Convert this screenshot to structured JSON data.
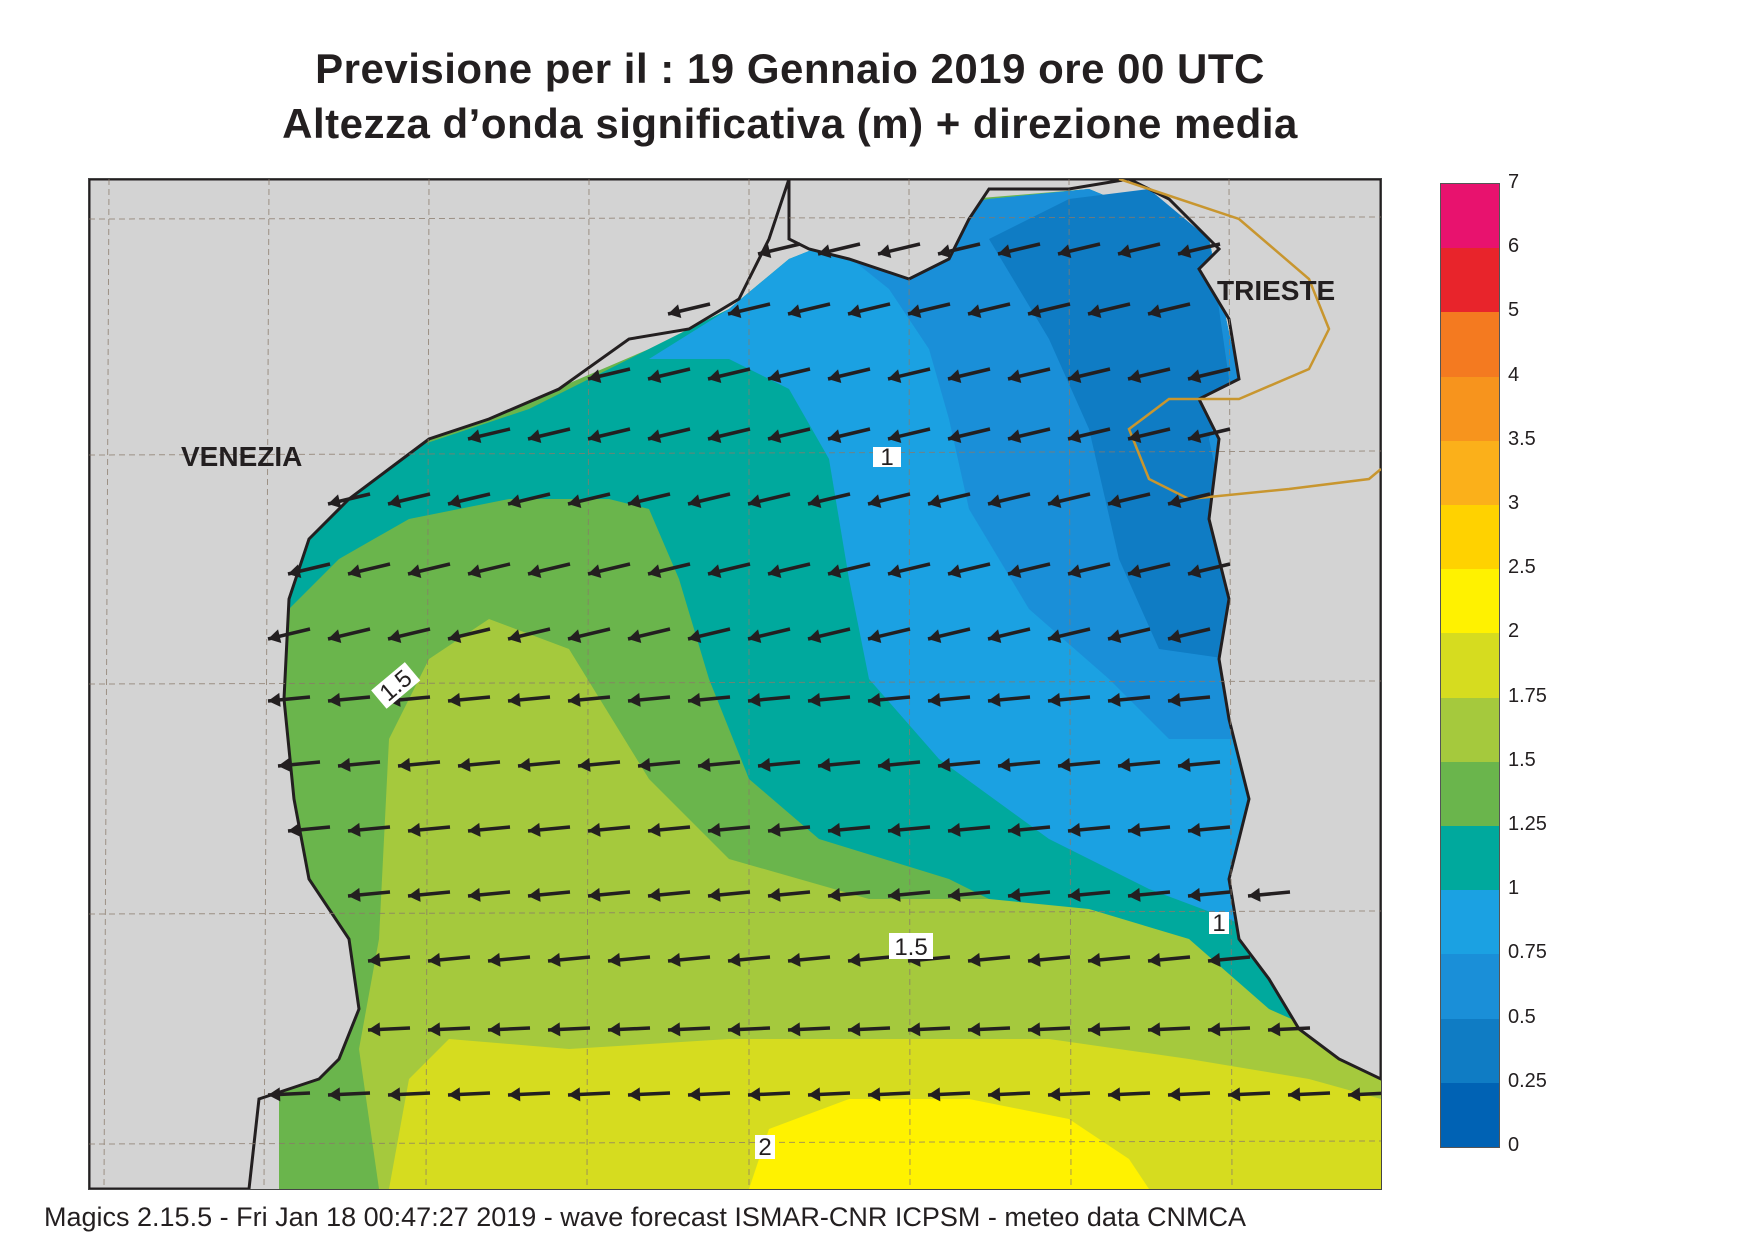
{
  "title": {
    "line1": "Previsione per il  :  19  Gennaio  2019   ore 00 UTC",
    "line2": "Altezza d’onda significativa (m) + direzione media"
  },
  "cities": {
    "venezia": "VENEZIA",
    "trieste": "TRIESTE"
  },
  "contour_labels": [
    "1",
    "1.5",
    "1.5",
    "1",
    "2"
  ],
  "legend": {
    "labels": [
      "7",
      "6",
      "5",
      "4",
      "3.5",
      "3",
      "2.5",
      "2",
      "1.75",
      "1.5",
      "1.25",
      "1",
      "0.75",
      "0.5",
      "0.25",
      "0"
    ],
    "colors": [
      "#e8126e",
      "#e8242b",
      "#f47a20",
      "#f7941d",
      "#fbb01a",
      "#ffd200",
      "#fff200",
      "#d6dc1f",
      "#a5c93d",
      "#6ab54c",
      "#00a99d",
      "#1ba1e2",
      "#1a8fd8",
      "#0f7cc4",
      "#0062b4"
    ]
  },
  "colors": {
    "land": "#d3d3d3",
    "border": "#c8962f",
    "arrow": "#231f20"
  },
  "arrow_direction": "towards west-southwest",
  "footer": "Magics 2.15.5 - Fri Jan 18 00:47:27 2019 - wave forecast  ISMAR-CNR  ICPSM - meteo data   CNMCA"
}
